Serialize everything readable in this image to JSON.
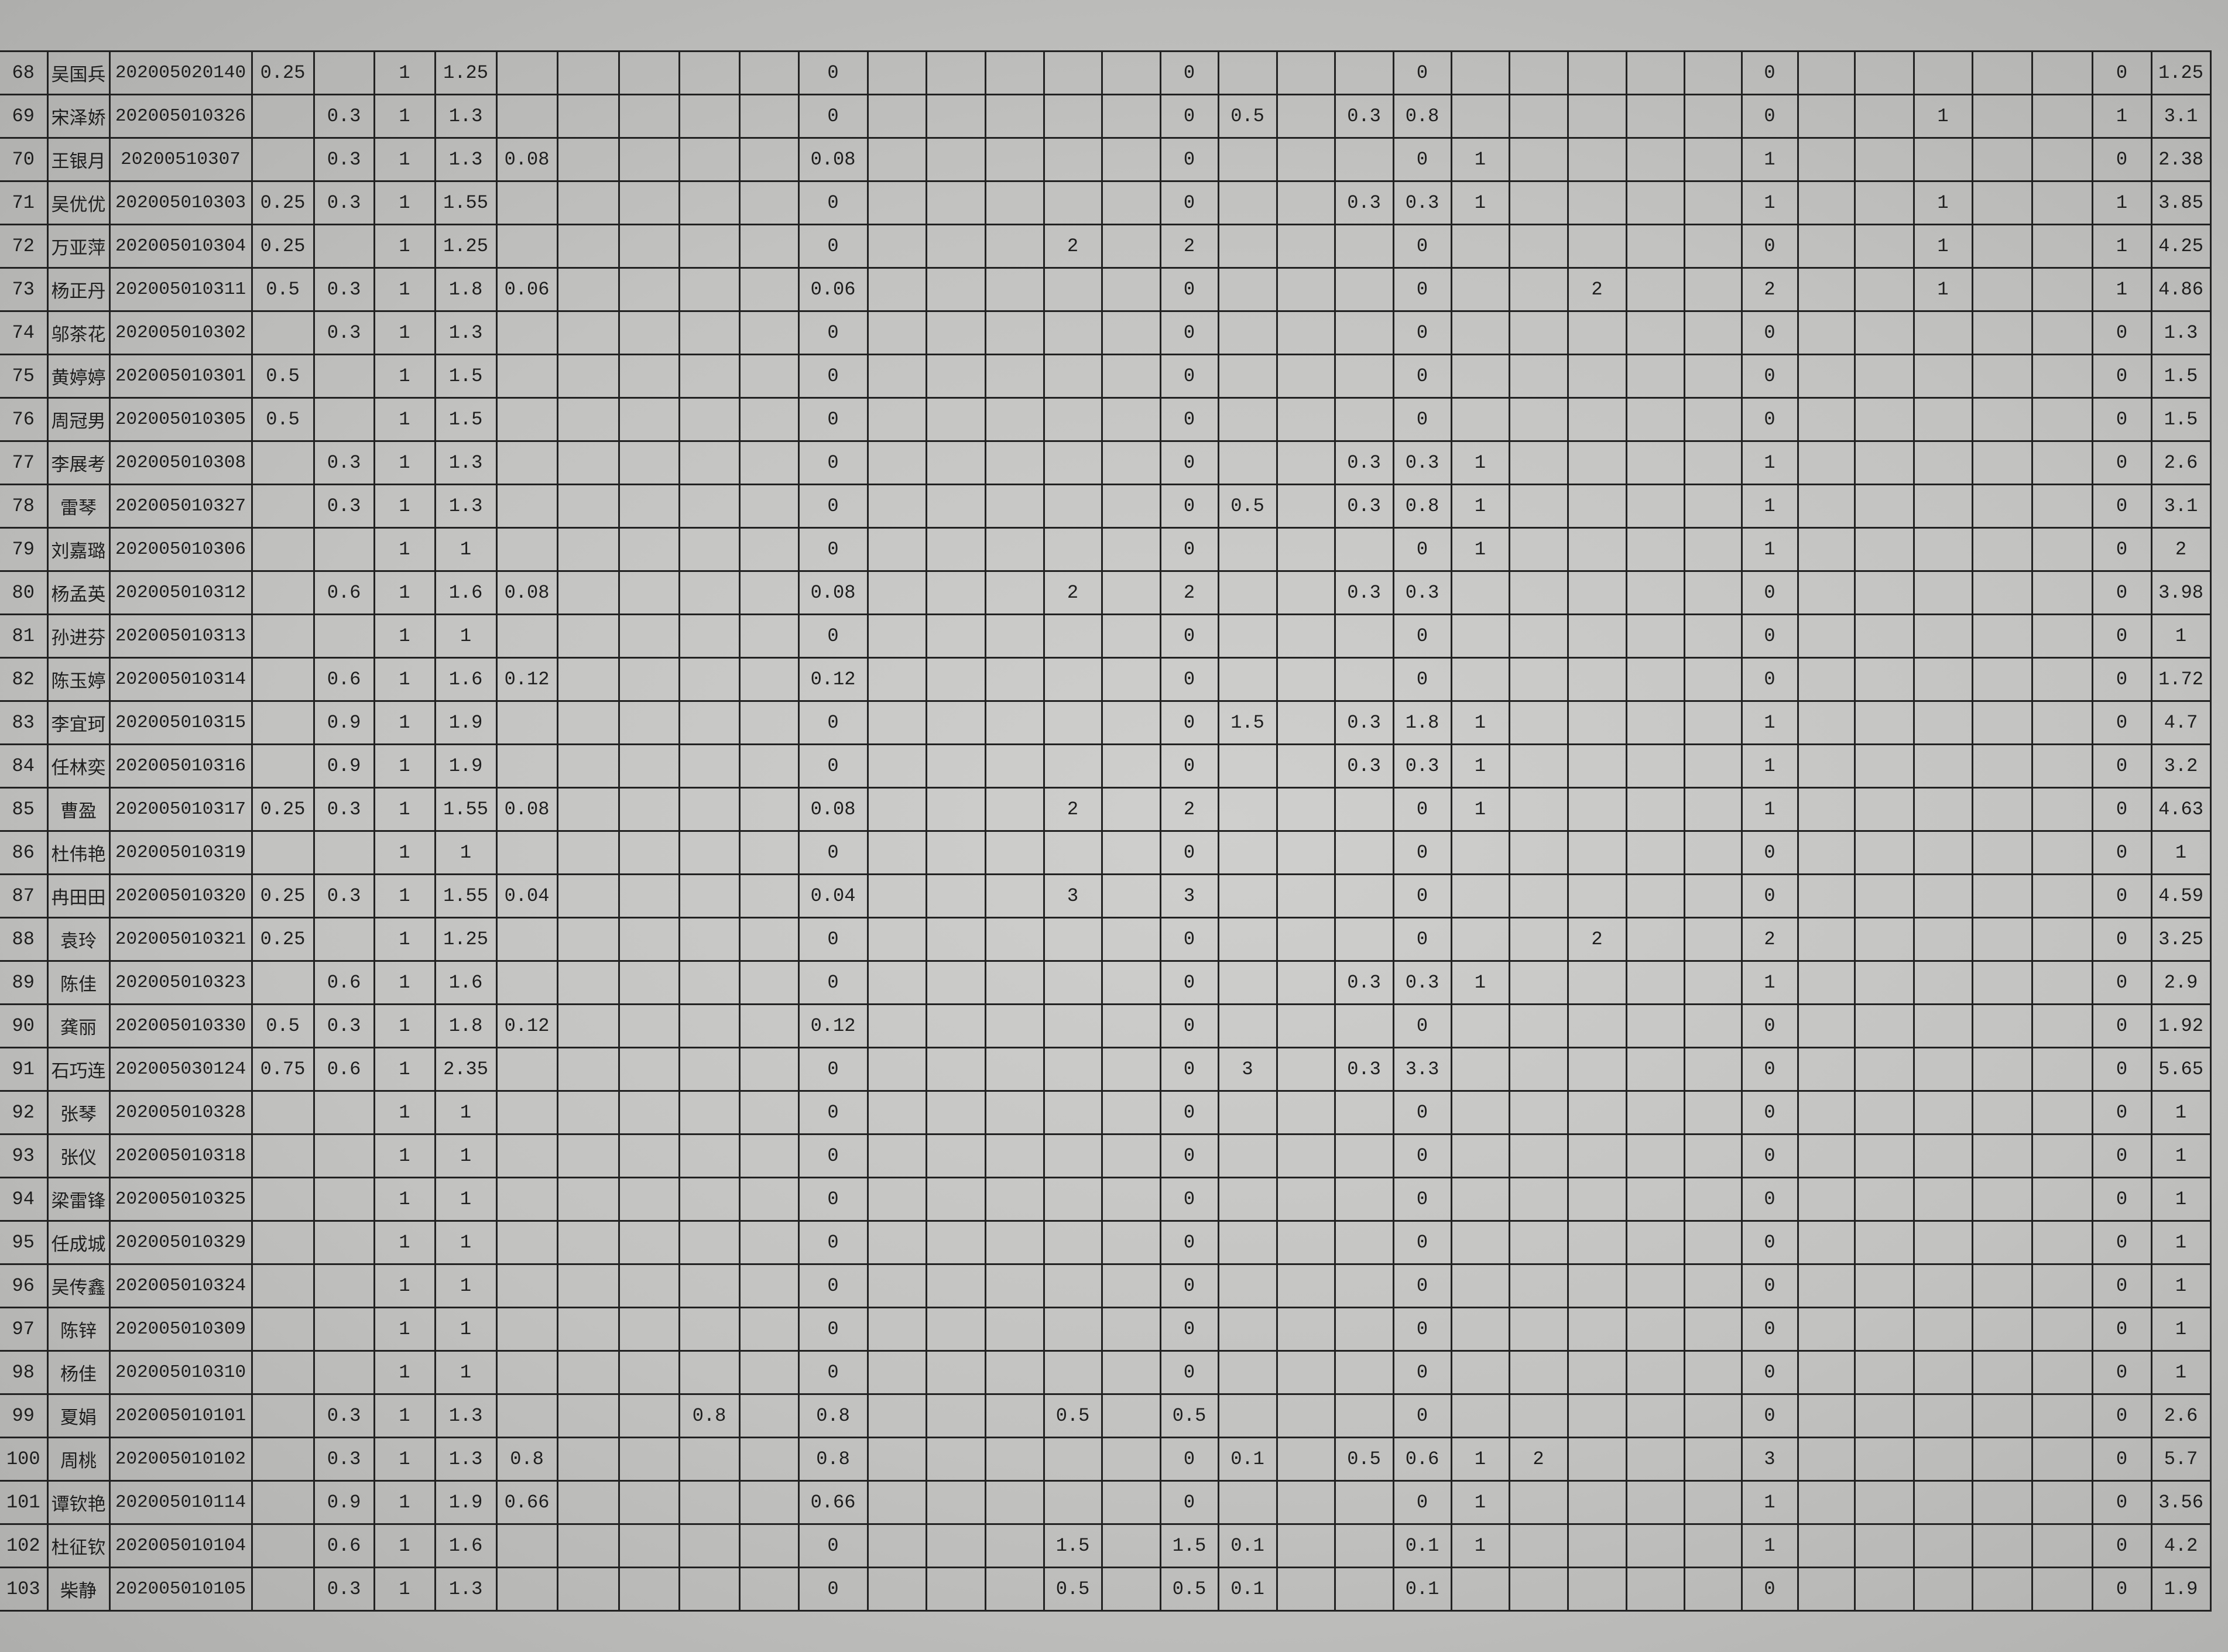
{
  "rows": [
    [
      "68",
      "吴国兵",
      "202005020140",
      "0.25",
      "",
      "1",
      "1.25",
      "",
      "",
      "",
      "",
      "",
      "0",
      "",
      "",
      "",
      "",
      "",
      "0",
      "",
      "",
      "",
      "0",
      "",
      "",
      "",
      "",
      "",
      "0",
      "",
      "",
      "",
      "",
      "",
      "0",
      "1.25"
    ],
    [
      "69",
      "宋泽娇",
      "202005010326",
      "",
      "0.3",
      "1",
      "1.3",
      "",
      "",
      "",
      "",
      "",
      "0",
      "",
      "",
      "",
      "",
      "",
      "0",
      "0.5",
      "",
      "0.3",
      "0.8",
      "",
      "",
      "",
      "",
      "",
      "0",
      "",
      "",
      "1",
      "",
      "",
      "1",
      "3.1"
    ],
    [
      "70",
      "王银月",
      "20200510307",
      "",
      "0.3",
      "1",
      "1.3",
      "0.08",
      "",
      "",
      "",
      "",
      "0.08",
      "",
      "",
      "",
      "",
      "",
      "0",
      "",
      "",
      "",
      "0",
      "1",
      "",
      "",
      "",
      "",
      "1",
      "",
      "",
      "",
      "",
      "",
      "0",
      "2.38"
    ],
    [
      "71",
      "吴优优",
      "202005010303",
      "0.25",
      "0.3",
      "1",
      "1.55",
      "",
      "",
      "",
      "",
      "",
      "0",
      "",
      "",
      "",
      "",
      "",
      "0",
      "",
      "",
      "0.3",
      "0.3",
      "1",
      "",
      "",
      "",
      "",
      "1",
      "",
      "",
      "1",
      "",
      "",
      "1",
      "3.85"
    ],
    [
      "72",
      "万亚萍",
      "202005010304",
      "0.25",
      "",
      "1",
      "1.25",
      "",
      "",
      "",
      "",
      "",
      "0",
      "",
      "",
      "",
      "2",
      "",
      "2",
      "",
      "",
      "",
      "0",
      "",
      "",
      "",
      "",
      "",
      "0",
      "",
      "",
      "1",
      "",
      "",
      "1",
      "4.25"
    ],
    [
      "73",
      "杨正丹",
      "202005010311",
      "0.5",
      "0.3",
      "1",
      "1.8",
      "0.06",
      "",
      "",
      "",
      "",
      "0.06",
      "",
      "",
      "",
      "",
      "",
      "0",
      "",
      "",
      "",
      "0",
      "",
      "",
      "2",
      "",
      "",
      "2",
      "",
      "",
      "1",
      "",
      "",
      "1",
      "4.86"
    ],
    [
      "74",
      "邬茶花",
      "202005010302",
      "",
      "0.3",
      "1",
      "1.3",
      "",
      "",
      "",
      "",
      "",
      "0",
      "",
      "",
      "",
      "",
      "",
      "0",
      "",
      "",
      "",
      "0",
      "",
      "",
      "",
      "",
      "",
      "0",
      "",
      "",
      "",
      "",
      "",
      "0",
      "1.3"
    ],
    [
      "75",
      "黄婷婷",
      "202005010301",
      "0.5",
      "",
      "1",
      "1.5",
      "",
      "",
      "",
      "",
      "",
      "0",
      "",
      "",
      "",
      "",
      "",
      "0",
      "",
      "",
      "",
      "0",
      "",
      "",
      "",
      "",
      "",
      "0",
      "",
      "",
      "",
      "",
      "",
      "0",
      "1.5"
    ],
    [
      "76",
      "周冠男",
      "202005010305",
      "0.5",
      "",
      "1",
      "1.5",
      "",
      "",
      "",
      "",
      "",
      "0",
      "",
      "",
      "",
      "",
      "",
      "0",
      "",
      "",
      "",
      "0",
      "",
      "",
      "",
      "",
      "",
      "0",
      "",
      "",
      "",
      "",
      "",
      "0",
      "1.5"
    ],
    [
      "77",
      "李展考",
      "202005010308",
      "",
      "0.3",
      "1",
      "1.3",
      "",
      "",
      "",
      "",
      "",
      "0",
      "",
      "",
      "",
      "",
      "",
      "0",
      "",
      "",
      "0.3",
      "0.3",
      "1",
      "",
      "",
      "",
      "",
      "1",
      "",
      "",
      "",
      "",
      "",
      "0",
      "2.6"
    ],
    [
      "78",
      "雷琴",
      "202005010327",
      "",
      "0.3",
      "1",
      "1.3",
      "",
      "",
      "",
      "",
      "",
      "0",
      "",
      "",
      "",
      "",
      "",
      "0",
      "0.5",
      "",
      "0.3",
      "0.8",
      "1",
      "",
      "",
      "",
      "",
      "1",
      "",
      "",
      "",
      "",
      "",
      "0",
      "3.1"
    ],
    [
      "79",
      "刘嘉璐",
      "202005010306",
      "",
      "",
      "1",
      "1",
      "",
      "",
      "",
      "",
      "",
      "0",
      "",
      "",
      "",
      "",
      "",
      "0",
      "",
      "",
      "",
      "0",
      "1",
      "",
      "",
      "",
      "",
      "1",
      "",
      "",
      "",
      "",
      "",
      "0",
      "2"
    ],
    [
      "80",
      "杨孟英",
      "202005010312",
      "",
      "0.6",
      "1",
      "1.6",
      "0.08",
      "",
      "",
      "",
      "",
      "0.08",
      "",
      "",
      "",
      "2",
      "",
      "2",
      "",
      "",
      "0.3",
      "0.3",
      "",
      "",
      "",
      "",
      "",
      "0",
      "",
      "",
      "",
      "",
      "",
      "0",
      "3.98"
    ],
    [
      "81",
      "孙进芬",
      "202005010313",
      "",
      "",
      "1",
      "1",
      "",
      "",
      "",
      "",
      "",
      "0",
      "",
      "",
      "",
      "",
      "",
      "0",
      "",
      "",
      "",
      "0",
      "",
      "",
      "",
      "",
      "",
      "0",
      "",
      "",
      "",
      "",
      "",
      "0",
      "1"
    ],
    [
      "82",
      "陈玉婷",
      "202005010314",
      "",
      "0.6",
      "1",
      "1.6",
      "0.12",
      "",
      "",
      "",
      "",
      "0.12",
      "",
      "",
      "",
      "",
      "",
      "0",
      "",
      "",
      "",
      "0",
      "",
      "",
      "",
      "",
      "",
      "0",
      "",
      "",
      "",
      "",
      "",
      "0",
      "1.72"
    ],
    [
      "83",
      "李宜珂",
      "202005010315",
      "",
      "0.9",
      "1",
      "1.9",
      "",
      "",
      "",
      "",
      "",
      "0",
      "",
      "",
      "",
      "",
      "",
      "0",
      "1.5",
      "",
      "0.3",
      "1.8",
      "1",
      "",
      "",
      "",
      "",
      "1",
      "",
      "",
      "",
      "",
      "",
      "0",
      "4.7"
    ],
    [
      "84",
      "任林奕",
      "202005010316",
      "",
      "0.9",
      "1",
      "1.9",
      "",
      "",
      "",
      "",
      "",
      "0",
      "",
      "",
      "",
      "",
      "",
      "0",
      "",
      "",
      "0.3",
      "0.3",
      "1",
      "",
      "",
      "",
      "",
      "1",
      "",
      "",
      "",
      "",
      "",
      "0",
      "3.2"
    ],
    [
      "85",
      "曹盈",
      "202005010317",
      "0.25",
      "0.3",
      "1",
      "1.55",
      "0.08",
      "",
      "",
      "",
      "",
      "0.08",
      "",
      "",
      "",
      "2",
      "",
      "2",
      "",
      "",
      "",
      "0",
      "1",
      "",
      "",
      "",
      "",
      "1",
      "",
      "",
      "",
      "",
      "",
      "0",
      "4.63"
    ],
    [
      "86",
      "杜伟艳",
      "202005010319",
      "",
      "",
      "1",
      "1",
      "",
      "",
      "",
      "",
      "",
      "0",
      "",
      "",
      "",
      "",
      "",
      "0",
      "",
      "",
      "",
      "0",
      "",
      "",
      "",
      "",
      "",
      "0",
      "",
      "",
      "",
      "",
      "",
      "0",
      "1"
    ],
    [
      "87",
      "冉田田",
      "202005010320",
      "0.25",
      "0.3",
      "1",
      "1.55",
      "0.04",
      "",
      "",
      "",
      "",
      "0.04",
      "",
      "",
      "",
      "3",
      "",
      "3",
      "",
      "",
      "",
      "0",
      "",
      "",
      "",
      "",
      "",
      "0",
      "",
      "",
      "",
      "",
      "",
      "0",
      "4.59"
    ],
    [
      "88",
      "袁玲",
      "202005010321",
      "0.25",
      "",
      "1",
      "1.25",
      "",
      "",
      "",
      "",
      "",
      "0",
      "",
      "",
      "",
      "",
      "",
      "0",
      "",
      "",
      "",
      "0",
      "",
      "",
      "2",
      "",
      "",
      "2",
      "",
      "",
      "",
      "",
      "",
      "0",
      "3.25"
    ],
    [
      "89",
      "陈佳",
      "202005010323",
      "",
      "0.6",
      "1",
      "1.6",
      "",
      "",
      "",
      "",
      "",
      "0",
      "",
      "",
      "",
      "",
      "",
      "0",
      "",
      "",
      "0.3",
      "0.3",
      "1",
      "",
      "",
      "",
      "",
      "1",
      "",
      "",
      "",
      "",
      "",
      "0",
      "2.9"
    ],
    [
      "90",
      "龚丽",
      "202005010330",
      "0.5",
      "0.3",
      "1",
      "1.8",
      "0.12",
      "",
      "",
      "",
      "",
      "0.12",
      "",
      "",
      "",
      "",
      "",
      "0",
      "",
      "",
      "",
      "0",
      "",
      "",
      "",
      "",
      "",
      "0",
      "",
      "",
      "",
      "",
      "",
      "0",
      "1.92"
    ],
    [
      "91",
      "石巧连",
      "202005030124",
      "0.75",
      "0.6",
      "1",
      "2.35",
      "",
      "",
      "",
      "",
      "",
      "0",
      "",
      "",
      "",
      "",
      "",
      "0",
      "3",
      "",
      "0.3",
      "3.3",
      "",
      "",
      "",
      "",
      "",
      "0",
      "",
      "",
      "",
      "",
      "",
      "0",
      "5.65"
    ],
    [
      "92",
      "张琴",
      "202005010328",
      "",
      "",
      "1",
      "1",
      "",
      "",
      "",
      "",
      "",
      "0",
      "",
      "",
      "",
      "",
      "",
      "0",
      "",
      "",
      "",
      "0",
      "",
      "",
      "",
      "",
      "",
      "0",
      "",
      "",
      "",
      "",
      "",
      "0",
      "1"
    ],
    [
      "93",
      "张仪",
      "202005010318",
      "",
      "",
      "1",
      "1",
      "",
      "",
      "",
      "",
      "",
      "0",
      "",
      "",
      "",
      "",
      "",
      "0",
      "",
      "",
      "",
      "0",
      "",
      "",
      "",
      "",
      "",
      "0",
      "",
      "",
      "",
      "",
      "",
      "0",
      "1"
    ],
    [
      "94",
      "梁雷锋",
      "202005010325",
      "",
      "",
      "1",
      "1",
      "",
      "",
      "",
      "",
      "",
      "0",
      "",
      "",
      "",
      "",
      "",
      "0",
      "",
      "",
      "",
      "0",
      "",
      "",
      "",
      "",
      "",
      "0",
      "",
      "",
      "",
      "",
      "",
      "0",
      "1"
    ],
    [
      "95",
      "任成城",
      "202005010329",
      "",
      "",
      "1",
      "1",
      "",
      "",
      "",
      "",
      "",
      "0",
      "",
      "",
      "",
      "",
      "",
      "0",
      "",
      "",
      "",
      "0",
      "",
      "",
      "",
      "",
      "",
      "0",
      "",
      "",
      "",
      "",
      "",
      "0",
      "1"
    ],
    [
      "96",
      "吴传鑫",
      "202005010324",
      "",
      "",
      "1",
      "1",
      "",
      "",
      "",
      "",
      "",
      "0",
      "",
      "",
      "",
      "",
      "",
      "0",
      "",
      "",
      "",
      "0",
      "",
      "",
      "",
      "",
      "",
      "0",
      "",
      "",
      "",
      "",
      "",
      "0",
      "1"
    ],
    [
      "97",
      "陈锌",
      "202005010309",
      "",
      "",
      "1",
      "1",
      "",
      "",
      "",
      "",
      "",
      "0",
      "",
      "",
      "",
      "",
      "",
      "0",
      "",
      "",
      "",
      "0",
      "",
      "",
      "",
      "",
      "",
      "0",
      "",
      "",
      "",
      "",
      "",
      "0",
      "1"
    ],
    [
      "98",
      "杨佳",
      "202005010310",
      "",
      "",
      "1",
      "1",
      "",
      "",
      "",
      "",
      "",
      "0",
      "",
      "",
      "",
      "",
      "",
      "0",
      "",
      "",
      "",
      "0",
      "",
      "",
      "",
      "",
      "",
      "0",
      "",
      "",
      "",
      "",
      "",
      "0",
      "1"
    ],
    [
      "99",
      "夏娟",
      "202005010101",
      "",
      "0.3",
      "1",
      "1.3",
      "",
      "",
      "",
      "0.8",
      "",
      "0.8",
      "",
      "",
      "",
      "0.5",
      "",
      "0.5",
      "",
      "",
      "",
      "0",
      "",
      "",
      "",
      "",
      "",
      "0",
      "",
      "",
      "",
      "",
      "",
      "0",
      "2.6"
    ],
    [
      "100",
      "周桃",
      "202005010102",
      "",
      "0.3",
      "1",
      "1.3",
      "0.8",
      "",
      "",
      "",
      "",
      "0.8",
      "",
      "",
      "",
      "",
      "",
      "0",
      "0.1",
      "",
      "0.5",
      "0.6",
      "1",
      "2",
      "",
      "",
      "",
      "3",
      "",
      "",
      "",
      "",
      "",
      "0",
      "5.7"
    ],
    [
      "101",
      "谭钦艳",
      "202005010114",
      "",
      "0.9",
      "1",
      "1.9",
      "0.66",
      "",
      "",
      "",
      "",
      "0.66",
      "",
      "",
      "",
      "",
      "",
      "0",
      "",
      "",
      "",
      "0",
      "1",
      "",
      "",
      "",
      "",
      "1",
      "",
      "",
      "",
      "",
      "",
      "0",
      "3.56"
    ],
    [
      "102",
      "杜征钦",
      "202005010104",
      "",
      "0.6",
      "1",
      "1.6",
      "",
      "",
      "",
      "",
      "",
      "0",
      "",
      "",
      "",
      "1.5",
      "",
      "1.5",
      "0.1",
      "",
      "",
      "0.1",
      "1",
      "",
      "",
      "",
      "",
      "1",
      "",
      "",
      "",
      "",
      "",
      "0",
      "4.2"
    ],
    [
      "103",
      "柴静",
      "202005010105",
      "",
      "0.3",
      "1",
      "1.3",
      "",
      "",
      "",
      "",
      "",
      "0",
      "",
      "",
      "",
      "0.5",
      "",
      "0.5",
      "0.1",
      "",
      "",
      "0.1",
      "",
      "",
      "",
      "",
      "",
      "0",
      "",
      "",
      "",
      "",
      "",
      "0",
      "1.9"
    ]
  ]
}
